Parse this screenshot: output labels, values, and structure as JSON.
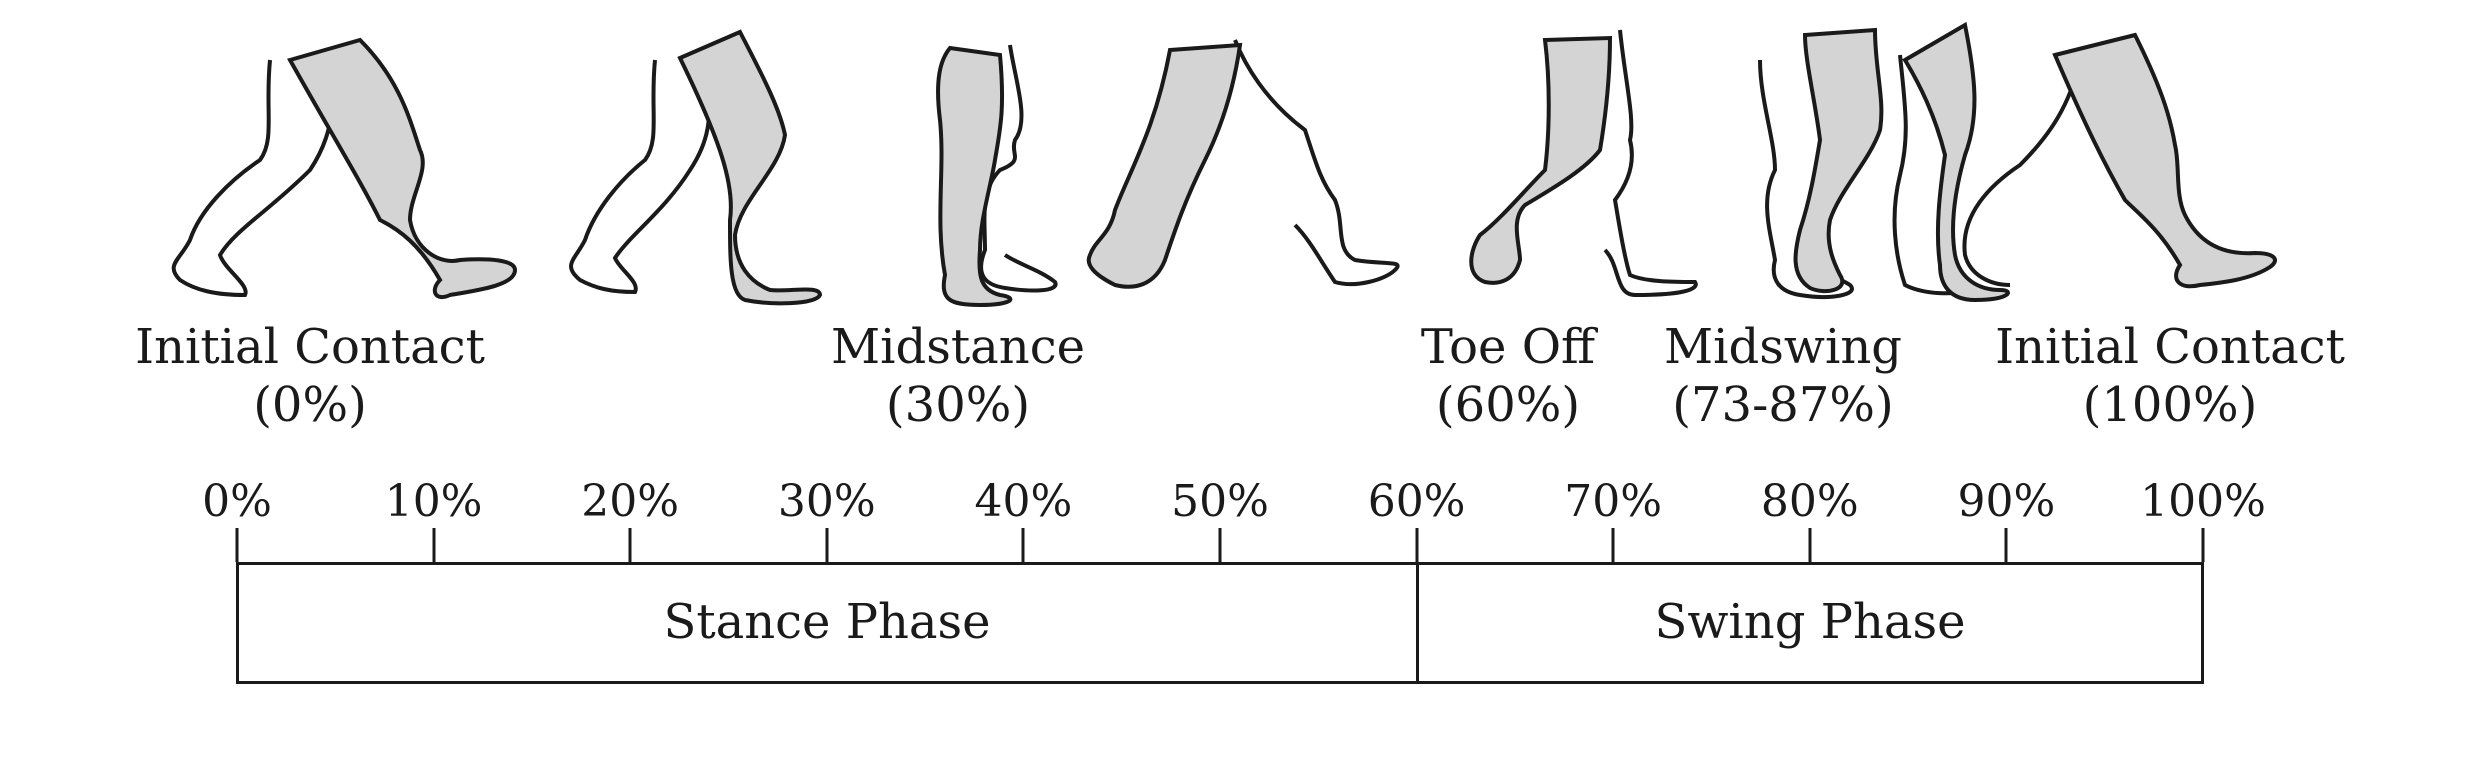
{
  "figure": {
    "phase_labels": [
      {
        "name": "Initial Contact",
        "value": "(0%)"
      },
      {
        "name": "Midstance",
        "value": "(30%)"
      },
      {
        "name": "Toe Off",
        "value": "(60%)"
      },
      {
        "name": "Midswing",
        "value": "(73-87%)"
      },
      {
        "name": "Initial Contact",
        "value": "(100%)"
      }
    ],
    "ticks": [
      "0%",
      "10%",
      "20%",
      "30%",
      "40%",
      "50%",
      "60%",
      "70%",
      "80%",
      "90%",
      "100%"
    ],
    "bars": [
      {
        "label": "Stance Phase"
      },
      {
        "label": "Swing Phase"
      }
    ],
    "colors": {
      "shaded_leg": "#d4d4d4",
      "outline": "#1a1a1a"
    },
    "icons": [
      "leg-pair-icon"
    ]
  }
}
